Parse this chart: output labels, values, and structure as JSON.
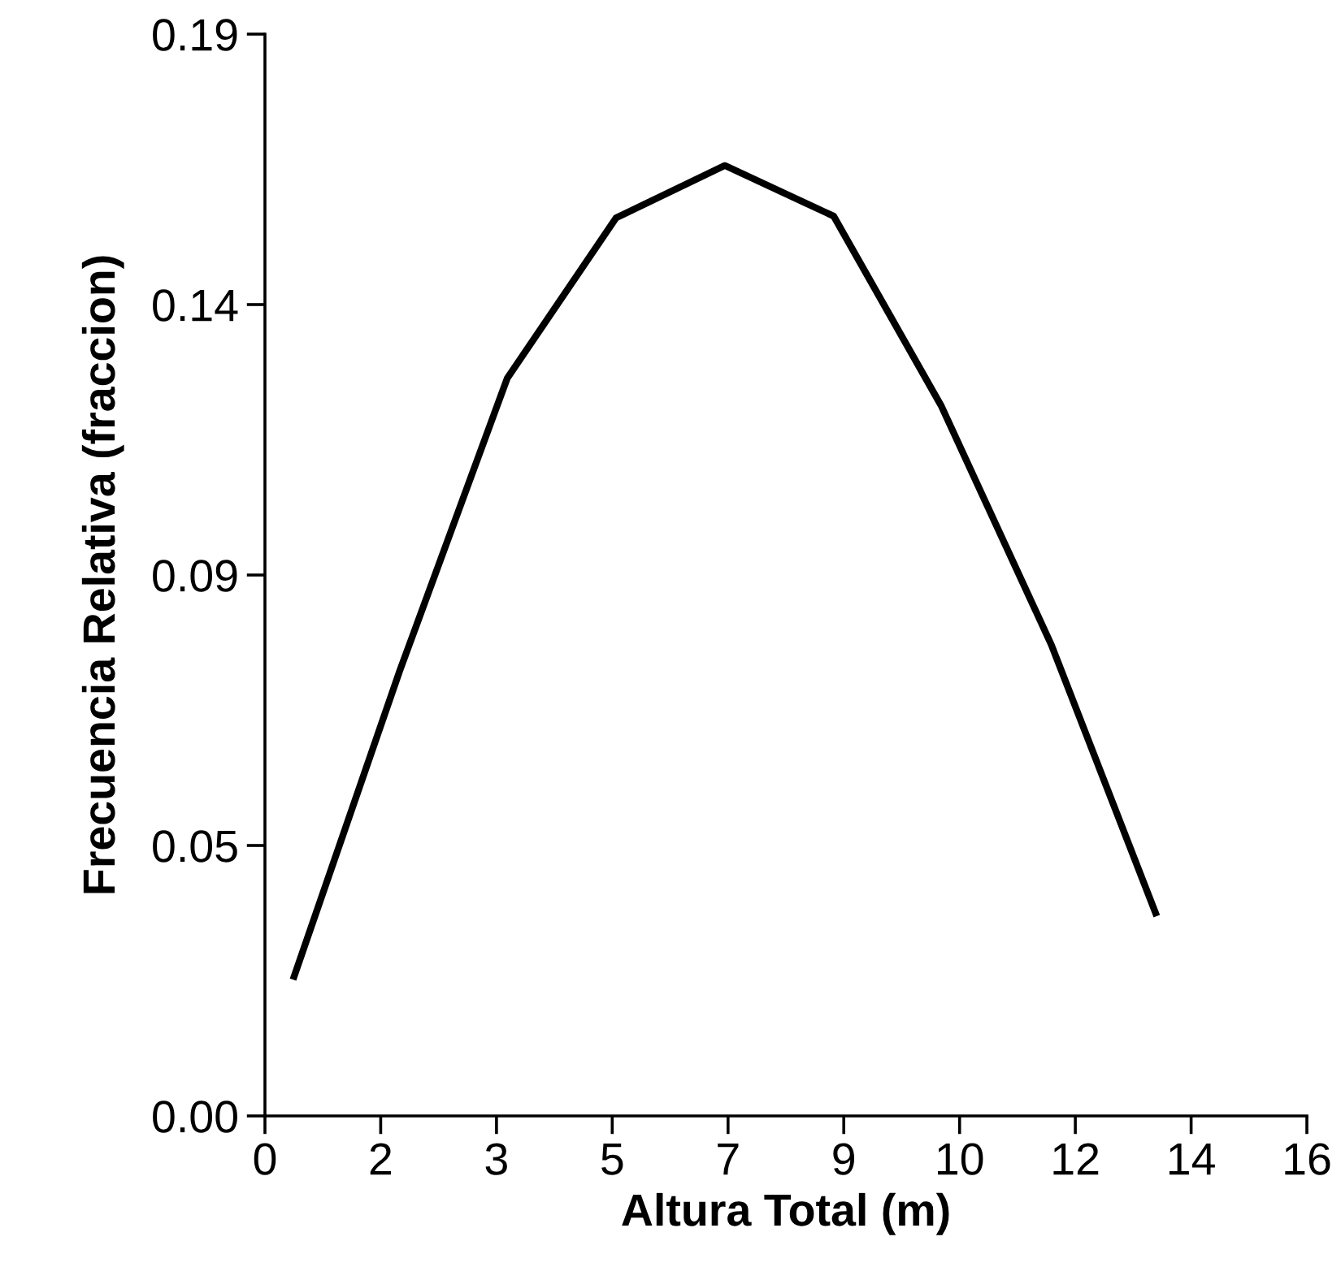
{
  "chart_data": {
    "type": "line",
    "xlabel": "Altura Total (m)",
    "ylabel": "Frecuencia Relativa (fraccion)",
    "xlim": [
      0,
      15.7
    ],
    "ylim": [
      0,
      0.186
    ],
    "xticks": [
      0,
      {
        "value": 1.744,
        "label": "2"
      },
      {
        "value": 3.489,
        "label": "3"
      },
      {
        "value": 5.233,
        "label": "5"
      },
      {
        "value": 6.978,
        "label": "7"
      },
      {
        "value": 8.722,
        "label": "9"
      },
      {
        "value": 10.467,
        "label": "10"
      },
      {
        "value": 12.211,
        "label": "12"
      },
      {
        "value": 13.956,
        "label": "14"
      },
      {
        "value": 15.7,
        "label": "16"
      }
    ],
    "yticks": [
      {
        "value": 0,
        "label": "0.00"
      },
      {
        "value": 0.0465,
        "label": "0.05"
      },
      {
        "value": 0.093,
        "label": "0.09"
      },
      {
        "value": 0.1395,
        "label": "0.14"
      },
      {
        "value": 0.186,
        "label": "0.19"
      }
    ],
    "grid": false,
    "marker": "none",
    "line_style": "solid",
    "tick_labels": "xy",
    "series": [
      {
        "color": "#000000",
        "x": [
          0.44,
          2.03,
          3.65,
          5.29,
          6.93,
          8.57,
          10.19,
          11.85,
          13.42
        ],
        "values": [
          0.024,
          0.0765,
          0.1268,
          0.1544,
          0.1634,
          0.1547,
          0.1221,
          0.081,
          0.0349
        ]
      }
    ]
  }
}
